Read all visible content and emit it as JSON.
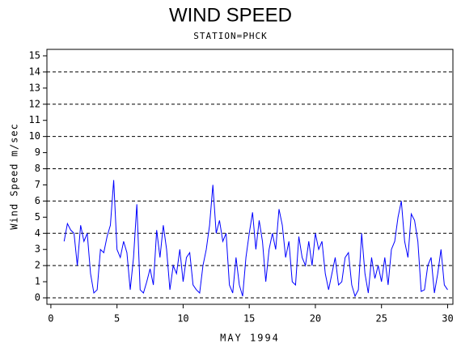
{
  "chart_data": {
    "type": "line",
    "title": "WIND SPEED",
    "subtitle": "STATION=PHCK",
    "x_label": "MAY 1994",
    "y_label": "Wind Speed m/sec",
    "color": "#0000ff",
    "x": [
      1,
      1.25,
      1.5,
      1.75,
      2,
      2.25,
      2.5,
      2.75,
      3,
      3.25,
      3.5,
      3.75,
      4,
      4.25,
      4.5,
      4.75,
      5,
      5.25,
      5.5,
      5.75,
      6,
      6.25,
      6.5,
      6.75,
      7,
      7.25,
      7.5,
      7.75,
      8,
      8.25,
      8.5,
      8.75,
      9,
      9.25,
      9.5,
      9.75,
      10,
      10.25,
      10.5,
      10.75,
      11,
      11.25,
      11.5,
      11.75,
      12,
      12.25,
      12.5,
      12.75,
      13,
      13.25,
      13.5,
      13.75,
      14,
      14.25,
      14.5,
      14.75,
      15,
      15.25,
      15.5,
      15.75,
      16,
      16.25,
      16.5,
      16.75,
      17,
      17.25,
      17.5,
      17.75,
      18,
      18.25,
      18.5,
      18.75,
      19,
      19.25,
      19.5,
      19.75,
      20,
      20.25,
      20.5,
      20.75,
      21,
      21.25,
      21.5,
      21.75,
      22,
      22.25,
      22.5,
      22.75,
      23,
      23.25,
      23.5,
      23.75,
      24,
      24.25,
      24.5,
      24.75,
      25,
      25.25,
      25.5,
      25.75,
      26,
      26.25,
      26.5,
      26.75,
      27,
      27.25,
      27.5,
      27.75,
      28,
      28.25,
      28.5,
      28.75,
      29,
      29.25,
      29.5,
      29.75,
      30
    ],
    "values": [
      3.5,
      4.6,
      4.2,
      4.0,
      2.0,
      4.5,
      3.5,
      4.0,
      1.5,
      0.3,
      0.5,
      3.0,
      2.8,
      3.8,
      4.5,
      7.3,
      3.0,
      2.5,
      3.5,
      2.8,
      0.5,
      2.5,
      5.8,
      0.5,
      0.3,
      1.0,
      1.8,
      0.8,
      4.2,
      2.5,
      4.5,
      3.0,
      0.5,
      2.0,
      1.5,
      3.0,
      1.0,
      2.5,
      2.8,
      0.8,
      0.5,
      0.3,
      2.0,
      3.0,
      4.5,
      7.0,
      4.0,
      4.8,
      3.5,
      4.0,
      0.8,
      0.3,
      2.5,
      0.8,
      0.1,
      2.5,
      4.0,
      5.3,
      3.0,
      4.8,
      3.5,
      1.0,
      3.0,
      4.0,
      3.0,
      5.5,
      4.5,
      2.5,
      3.5,
      1.0,
      0.8,
      3.8,
      2.5,
      2.0,
      3.5,
      2.0,
      4.0,
      3.0,
      3.5,
      1.5,
      0.5,
      1.5,
      2.5,
      0.8,
      1.0,
      2.5,
      2.8,
      0.8,
      0.1,
      0.5,
      4.0,
      1.5,
      0.3,
      2.5,
      1.2,
      2.0,
      1.0,
      2.5,
      0.8,
      3.0,
      3.5,
      5.0,
      6.0,
      3.5,
      2.5,
      5.2,
      4.8,
      3.5,
      0.4,
      0.5,
      2.0,
      2.5,
      0.3,
      1.5,
      3.0,
      0.8,
      0.5
    ],
    "xlim": [
      -0.3,
      30.4
    ],
    "xticks": [
      0,
      5,
      10,
      15,
      20,
      25,
      30
    ],
    "ylim": [
      -0.4,
      15.4
    ],
    "yticks": [
      0,
      1,
      2,
      3,
      4,
      5,
      6,
      7,
      8,
      9,
      10,
      11,
      12,
      13,
      14,
      15
    ],
    "ygrid": [
      0,
      2,
      4,
      6,
      8,
      10,
      12,
      14
    ]
  }
}
